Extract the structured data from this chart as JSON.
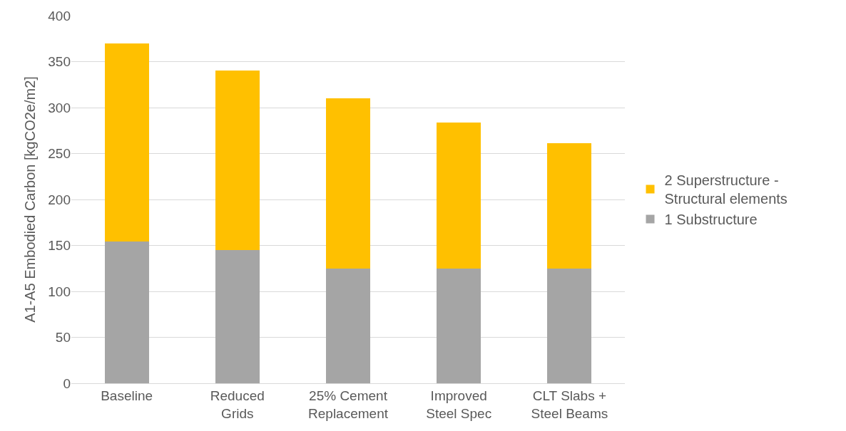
{
  "chart_data": {
    "type": "bar",
    "stacked": true,
    "ylabel": "A1-A5 Embodied Carbon [kgCO2e/m2]",
    "categories": [
      "Baseline",
      "Reduced Grids",
      "25% Cement Replacement",
      "Improved Steel Spec",
      "CLT Slabs + Steel Beams"
    ],
    "series": [
      {
        "name": "1 Substructure",
        "color": "#a5a5a5",
        "values": [
          154,
          145,
          125,
          125,
          125
        ]
      },
      {
        "name": "2 Superstructure - Structural elements",
        "color": "#ffc000",
        "values": [
          216,
          195,
          185,
          159,
          136
        ]
      }
    ],
    "ylim": [
      0,
      400
    ],
    "yticks": [
      0,
      50,
      100,
      150,
      200,
      250,
      300,
      350,
      400
    ],
    "grid": "y",
    "legend": "right"
  }
}
